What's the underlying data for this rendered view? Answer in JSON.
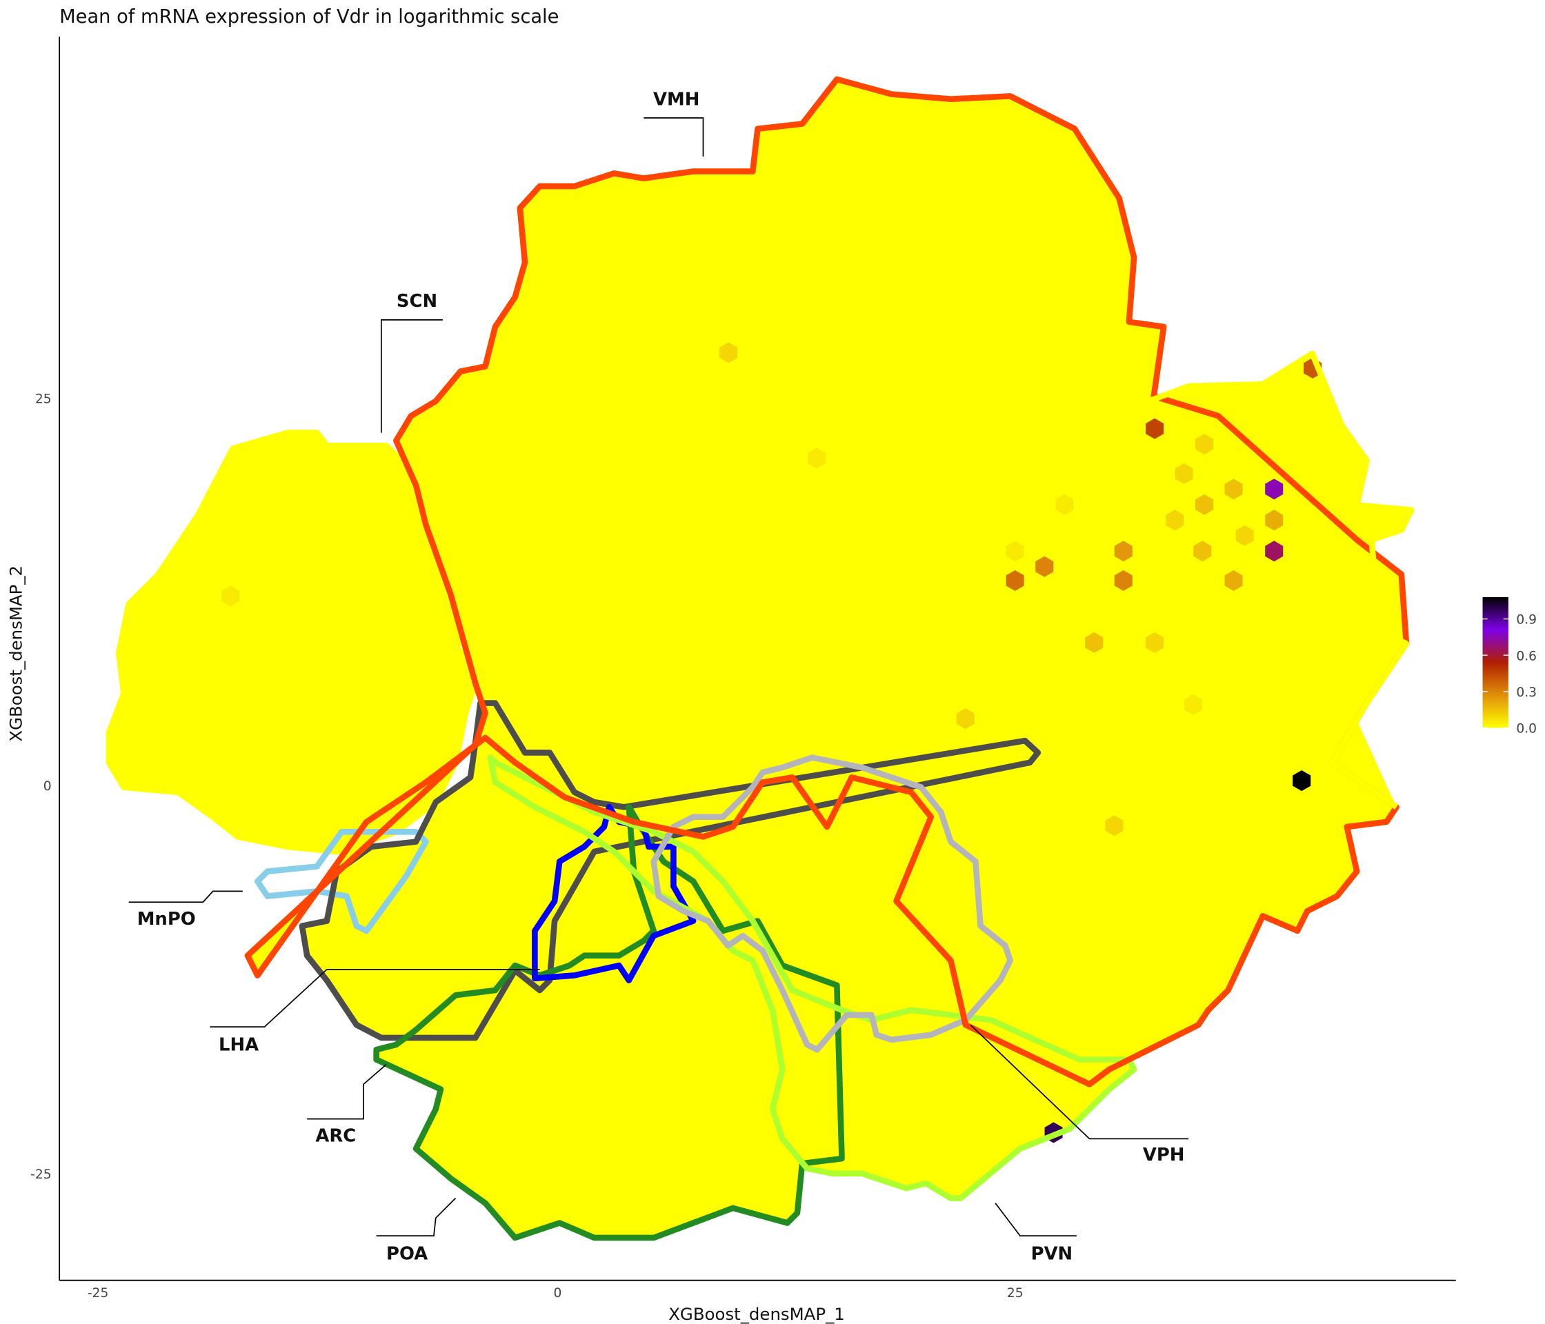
{
  "chart_data": {
    "type": "hexbin",
    "title": "Mean of mRNA expression of Vdr in logarithmic scale",
    "xlabel": "XGBoost_densMAP_1",
    "ylabel": "XGBoost_densMAP_2",
    "xlim": [
      -27,
      49
    ],
    "ylim": [
      -32,
      49
    ],
    "xticks": [
      "-25",
      "0",
      "25"
    ],
    "yticks": [
      "25",
      "0",
      "-25"
    ],
    "grid": false,
    "background_cell_value": 0.0,
    "background_cell_color": "#FFFF00",
    "colorbar": {
      "position": "right",
      "range": [
        0,
        1.08
      ],
      "ticks": [
        "0.0",
        "0.3",
        "0.6",
        "0.9"
      ],
      "colors": [
        "#FFFF00",
        "#E0900A",
        "#B02000",
        "#8000E8",
        "#000000"
      ]
    },
    "highlighted_cells": [
      {
        "x": 9.3,
        "y": 27.9,
        "value": 0.1
      },
      {
        "x": 41.1,
        "y": 26.9,
        "value": 0.4
      },
      {
        "x": 32.5,
        "y": 23.0,
        "value": 0.45
      },
      {
        "x": 35.2,
        "y": 22.0,
        "value": 0.1
      },
      {
        "x": 39.0,
        "y": 19.1,
        "value": 0.75
      },
      {
        "x": 36.8,
        "y": 19.1,
        "value": 0.15
      },
      {
        "x": 34.1,
        "y": 20.1,
        "value": 0.1
      },
      {
        "x": 35.2,
        "y": 18.1,
        "value": 0.15
      },
      {
        "x": 33.6,
        "y": 17.1,
        "value": 0.1
      },
      {
        "x": 39.0,
        "y": 17.1,
        "value": 0.2
      },
      {
        "x": 37.4,
        "y": 16.1,
        "value": 0.1
      },
      {
        "x": 30.8,
        "y": 15.1,
        "value": 0.25
      },
      {
        "x": 35.1,
        "y": 15.1,
        "value": 0.15
      },
      {
        "x": 39.0,
        "y": 15.1,
        "value": 0.65
      },
      {
        "x": 24.9,
        "y": 13.2,
        "value": 0.35
      },
      {
        "x": 26.5,
        "y": 14.1,
        "value": 0.3
      },
      {
        "x": 30.8,
        "y": 13.2,
        "value": 0.3
      },
      {
        "x": 36.8,
        "y": 13.2,
        "value": 0.2
      },
      {
        "x": 29.2,
        "y": 9.2,
        "value": 0.15
      },
      {
        "x": 32.5,
        "y": 9.2,
        "value": 0.1
      },
      {
        "x": 22.2,
        "y": 4.3,
        "value": 0.1
      },
      {
        "x": 40.5,
        "y": 0.3,
        "value": 1.08
      },
      {
        "x": 30.3,
        "y": -2.6,
        "value": 0.1
      },
      {
        "x": 27.0,
        "y": -22.4,
        "value": 0.98
      },
      {
        "x": -17.8,
        "y": 12.2,
        "value": 0.05
      },
      {
        "x": 14.1,
        "y": 21.1,
        "value": 0.05
      },
      {
        "x": 24.9,
        "y": 15.1,
        "value": 0.05
      },
      {
        "x": 27.6,
        "y": 18.1,
        "value": 0.05
      },
      {
        "x": 34.6,
        "y": 5.2,
        "value": 0.05
      }
    ],
    "regions": [
      {
        "name": "VMH",
        "color": "#FF4500"
      },
      {
        "name": "SCN",
        "color": "#FFFF00"
      },
      {
        "name": "MnPO",
        "color": "#87CEEB"
      },
      {
        "name": "LHA",
        "color": "#4D4D4D"
      },
      {
        "name": "ARC",
        "color": "#0000FF"
      },
      {
        "name": "POA",
        "color": "#228B22"
      },
      {
        "name": "PVN",
        "color": "#ADFF2F"
      },
      {
        "name": "VPH",
        "color": "#B4B4BC"
      }
    ]
  }
}
